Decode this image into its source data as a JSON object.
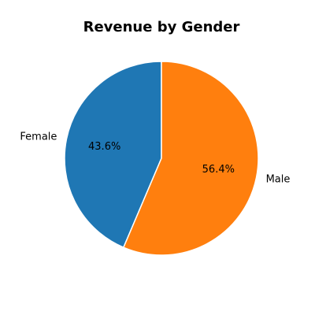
{
  "chart_data": {
    "type": "pie",
    "title": "Revenue by Gender",
    "labels": [
      "Female",
      "Male"
    ],
    "values": [
      43.6,
      56.4
    ],
    "percent_labels": [
      "43.6%",
      "56.4%"
    ],
    "colors": [
      "#1f77b4",
      "#ff7f0e"
    ],
    "start_angle_deg": 90,
    "direction": "counterclockwise",
    "wedge_edge_color": "#ffffff",
    "legend": "none",
    "grid": false
  }
}
